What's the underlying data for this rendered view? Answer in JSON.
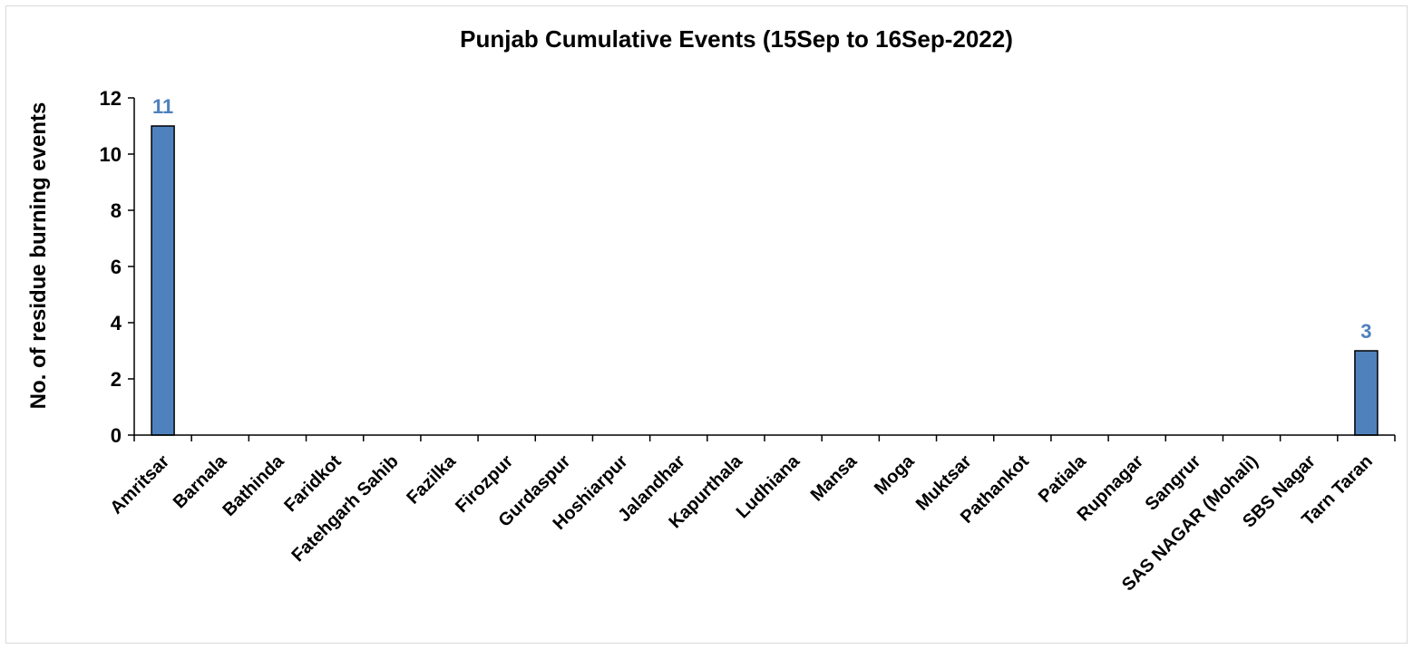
{
  "chart_data": {
    "type": "bar",
    "title": "Punjab Cumulative Events (15Sep to 16Sep-2022)",
    "xlabel": "",
    "ylabel": "No. of residue burning events",
    "categories": [
      "Amritsar",
      "Barnala",
      "Bathinda",
      "Faridkot",
      "Fatehgarh Sahib",
      "Fazilka",
      "Firozpur",
      "Gurdaspur",
      "Hoshiarpur",
      "Jalandhar",
      "Kapurthala",
      "Ludhiana",
      "Mansa",
      "Moga",
      "Muktsar",
      "Pathankot",
      "Patiala",
      "Rupnagar",
      "Sangrur",
      "SAS NAGAR (Mohali)",
      "SBS Nagar",
      "Tarn Taran"
    ],
    "values": [
      11,
      0,
      0,
      0,
      0,
      0,
      0,
      0,
      0,
      0,
      0,
      0,
      0,
      0,
      0,
      0,
      0,
      0,
      0,
      0,
      0,
      3
    ],
    "data_labels": [
      "11",
      "",
      "",
      "",
      "",
      "",
      "",
      "",
      "",
      "",
      "",
      "",
      "",
      "",
      "",
      "",
      "",
      "",
      "",
      "",
      "",
      "3"
    ],
    "ylim": [
      0,
      12
    ],
    "yticks": [
      "0",
      "2",
      "4",
      "6",
      "8",
      "10",
      "12"
    ],
    "grid": false,
    "legend": "none",
    "bar_color": "#4f81bd",
    "bar_edge_color": "#000000",
    "data_label_color": "#4f81bd"
  }
}
